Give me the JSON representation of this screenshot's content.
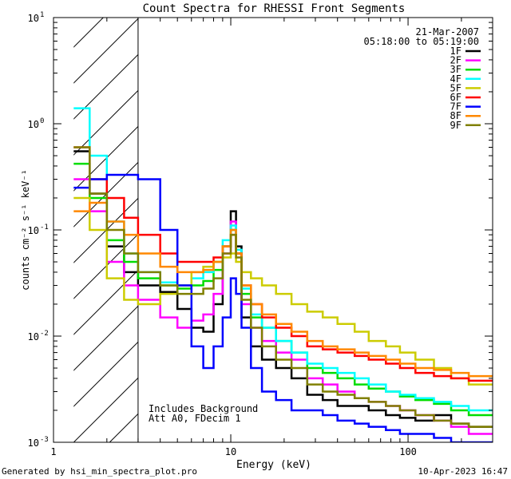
{
  "chart_data": {
    "type": "line",
    "title": "Count Spectra for RHESSI Front Segments",
    "xlabel": "Energy (keV)",
    "ylabel": "counts cm⁻² s⁻¹ keV⁻¹",
    "xscale": "log",
    "yscale": "log",
    "xlim": [
      1,
      300
    ],
    "ylim": [
      0.001,
      10
    ],
    "x_ticks": [
      {
        "value": 1,
        "label": "1"
      },
      {
        "value": 10,
        "label": "10"
      },
      {
        "value": 100,
        "label": "100"
      }
    ],
    "y_ticks": [
      {
        "value": 0.001,
        "label": "10",
        "exp": "-3"
      },
      {
        "value": 0.01,
        "label": "10",
        "exp": "-2"
      },
      {
        "value": 0.1,
        "label": "10",
        "exp": "-1"
      },
      {
        "value": 1,
        "label": "10",
        "exp": "0"
      },
      {
        "value": 10,
        "label": "10",
        "exp": "1"
      }
    ],
    "date": "21-Mar-2007",
    "time_range": "05:18:00 to 05:19:00",
    "annotations": [
      "Includes Background",
      "Att A0, FDecim 1"
    ],
    "shaded_region": {
      "from": 1.3,
      "to": 3.0
    },
    "energy_bins_keV": [
      1.3,
      1.6,
      2.0,
      2.5,
      3.0,
      4.0,
      5.0,
      6.0,
      7.0,
      8.0,
      9.0,
      10.0,
      10.7,
      11.5,
      13,
      15,
      18,
      22,
      27,
      33,
      40,
      50,
      60,
      75,
      90,
      110,
      140,
      175,
      220,
      300
    ],
    "series": [
      {
        "name": "1F",
        "color": "#000000",
        "values": [
          0.55,
          0.22,
          0.07,
          0.04,
          0.03,
          0.026,
          0.018,
          0.012,
          0.011,
          0.02,
          0.07,
          0.15,
          0.07,
          0.015,
          0.008,
          0.006,
          0.005,
          0.004,
          0.0028,
          0.0025,
          0.0022,
          0.0022,
          0.002,
          0.0018,
          0.0017,
          0.0016,
          0.0018,
          0.0015,
          0.0014
        ]
      },
      {
        "name": "2F",
        "color": "#ff00ff",
        "values": [
          0.3,
          0.15,
          0.05,
          0.03,
          0.022,
          0.015,
          0.012,
          0.014,
          0.016,
          0.025,
          0.06,
          0.12,
          0.06,
          0.02,
          0.012,
          0.009,
          0.007,
          0.006,
          0.004,
          0.0035,
          0.003,
          0.0026,
          0.0024,
          0.0022,
          0.002,
          0.0018,
          0.0016,
          0.0014,
          0.0012
        ]
      },
      {
        "name": "3F",
        "color": "#00dd00",
        "values": [
          0.42,
          0.2,
          0.08,
          0.05,
          0.035,
          0.03,
          0.028,
          0.03,
          0.033,
          0.042,
          0.07,
          0.1,
          0.06,
          0.025,
          0.015,
          0.012,
          0.009,
          0.007,
          0.005,
          0.0045,
          0.004,
          0.0035,
          0.0032,
          0.003,
          0.0027,
          0.0025,
          0.0023,
          0.002,
          0.0018
        ]
      },
      {
        "name": "4F",
        "color": "#00ffff",
        "values": [
          1.4,
          0.5,
          0.12,
          0.06,
          0.04,
          0.032,
          0.03,
          0.035,
          0.04,
          0.05,
          0.08,
          0.11,
          0.065,
          0.028,
          0.016,
          0.012,
          0.009,
          0.007,
          0.0055,
          0.005,
          0.0045,
          0.004,
          0.0035,
          0.003,
          0.0028,
          0.0026,
          0.0024,
          0.0022,
          0.002
        ]
      },
      {
        "name": "5F",
        "color": "#cccc00",
        "values": [
          0.2,
          0.1,
          0.035,
          0.022,
          0.02,
          0.025,
          0.03,
          0.04,
          0.045,
          0.05,
          0.055,
          0.06,
          0.05,
          0.04,
          0.035,
          0.03,
          0.025,
          0.02,
          0.017,
          0.015,
          0.013,
          0.011,
          0.009,
          0.008,
          0.007,
          0.006,
          0.005,
          0.004,
          0.0035
        ]
      },
      {
        "name": "6F",
        "color": "#ff0000",
        "values": [
          0.6,
          0.3,
          0.2,
          0.13,
          0.09,
          0.06,
          0.05,
          0.05,
          0.05,
          0.055,
          0.07,
          0.09,
          0.06,
          0.03,
          0.02,
          0.015,
          0.012,
          0.01,
          0.008,
          0.0075,
          0.007,
          0.0065,
          0.006,
          0.0055,
          0.005,
          0.0045,
          0.0042,
          0.004,
          0.0038
        ]
      },
      {
        "name": "7F",
        "color": "#0000ff",
        "values": [
          0.25,
          0.3,
          0.33,
          0.33,
          0.3,
          0.1,
          0.03,
          0.008,
          0.005,
          0.008,
          0.015,
          0.035,
          0.025,
          0.012,
          0.005,
          0.003,
          0.0025,
          0.002,
          0.002,
          0.0018,
          0.0016,
          0.0015,
          0.0014,
          0.0013,
          0.0012,
          0.0012,
          0.0011,
          0.001,
          0.001
        ]
      },
      {
        "name": "8F",
        "color": "#ff8800",
        "values": [
          0.15,
          0.18,
          0.12,
          0.09,
          0.06,
          0.045,
          0.04,
          0.04,
          0.042,
          0.05,
          0.07,
          0.1,
          0.06,
          0.03,
          0.02,
          0.016,
          0.013,
          0.011,
          0.009,
          0.008,
          0.0075,
          0.007,
          0.0065,
          0.006,
          0.0055,
          0.005,
          0.0048,
          0.0045,
          0.0042
        ]
      },
      {
        "name": "9F",
        "color": "#808000",
        "values": [
          0.6,
          0.22,
          0.1,
          0.06,
          0.04,
          0.03,
          0.025,
          0.025,
          0.028,
          0.035,
          0.06,
          0.09,
          0.055,
          0.022,
          0.012,
          0.008,
          0.006,
          0.005,
          0.0035,
          0.003,
          0.0028,
          0.0026,
          0.0024,
          0.0022,
          0.002,
          0.0018,
          0.0016,
          0.0015,
          0.0014
        ]
      }
    ]
  },
  "footer": {
    "generated_by": "Generated by hsi_min_spectra_plot.pro",
    "timestamp": "10-Apr-2023 16:47"
  }
}
